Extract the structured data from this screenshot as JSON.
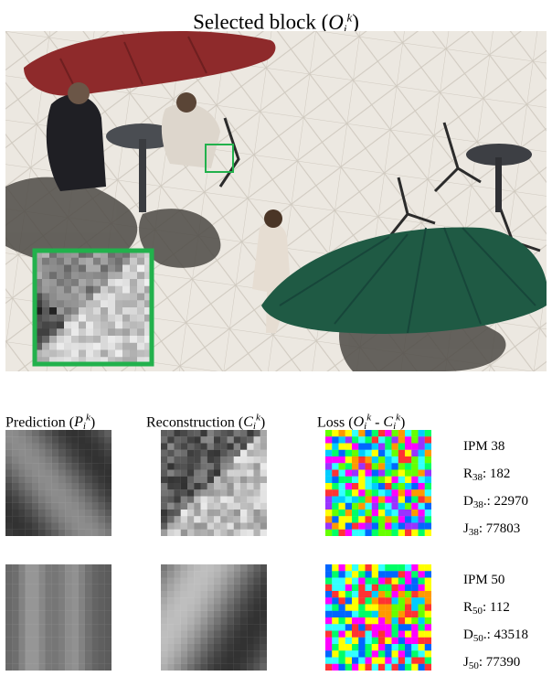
{
  "title": {
    "text": "Selected block (",
    "symbol": "O",
    "suffix": ")"
  },
  "columns": {
    "prediction": {
      "text": "Prediction (",
      "symbol": "P",
      "suffix": ")"
    },
    "reconstruction": {
      "text": "Reconstruction (",
      "symbol": "C",
      "suffix": ")"
    },
    "loss": {
      "text": "Loss (",
      "symbol_a": "O",
      "minus": " - ",
      "symbol_b": "C",
      "suffix": ")"
    }
  },
  "rows": [
    {
      "ipm": "IPM 38",
      "r_label": "R",
      "r_sub": "38",
      "r_value": ": 182",
      "d_label": "D",
      "d_sub": "38",
      "d_value": ".: 22970",
      "j_label": "J",
      "j_sub": "38",
      "j_value": ": 77803"
    },
    {
      "ipm": "IPM 50",
      "r_label": "R",
      "r_sub": "50",
      "r_value": ": 112",
      "d_label": "D",
      "d_sub": "50",
      "d_value": ".: 43518",
      "j_label": "J",
      "j_sub": "50",
      "j_value": ": 77390"
    }
  ],
  "colors": {
    "highlight": "#22b14c",
    "umbrella_red": "#8e2a2b",
    "umbrella_green": "#1f5a44",
    "ground": "#e9e4dc"
  }
}
